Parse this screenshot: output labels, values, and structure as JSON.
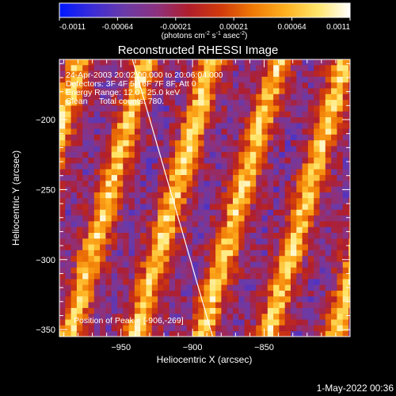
{
  "chart_data": {
    "type": "heatmap",
    "title": "Reconstructed RHESSI Image",
    "xlabel": "Heliocentric X (arcsec)",
    "ylabel": "Heliocentric Y (arcsec)",
    "x_ticks": [
      -950,
      -900,
      -850
    ],
    "y_ticks": [
      -200,
      -250,
      -300,
      -350
    ],
    "xlim": [
      -993,
      -790
    ],
    "ylim": [
      -355,
      -157
    ],
    "colorbar": {
      "tick_labels": [
        "-0.0011",
        "-0.00064",
        "-0.00021",
        "0.00021",
        "0.00064",
        "0.0011"
      ],
      "units_prefix": "(photons cm",
      "units_exp1": "-2",
      "units_mid": " s",
      "units_exp2": "-1",
      "units_mid2": " asec",
      "units_exp3": "-2",
      "units_suffix": ")",
      "range": [
        -0.0011,
        0.0011
      ]
    },
    "annotations": [
      "24-Apr-2003 20:02:00.000 to 20:06:04.000",
      "Detectors: 3F 4F 5F 6F 7F 8F, Att 0",
      "Energy Range: 12.0 - 25.0 keV",
      "Clean     Total counts: 780."
    ],
    "peak_label": "Position of Peak = [-906,-269]",
    "peak": [
      -906,
      -269
    ],
    "limb_line": [
      [
        -942,
        -157
      ],
      [
        -886,
        -355
      ]
    ],
    "footer_date": "1-May-2022 00:36",
    "colors": {
      "cmap": [
        "#0018ff",
        "#3a2cd8",
        "#6a3aa8",
        "#8c3280",
        "#b01e2c",
        "#d03a0c",
        "#f07a06",
        "#ffb020",
        "#ffe66a",
        "#ffffff"
      ]
    }
  }
}
